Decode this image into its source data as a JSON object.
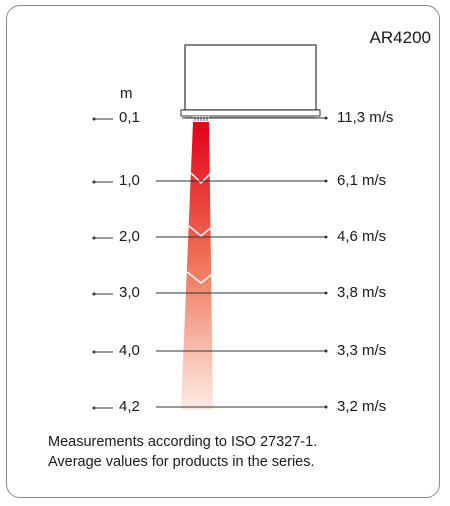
{
  "title": "AR4200",
  "height_unit": "m",
  "measurements": [
    {
      "height": "0,1",
      "velocity": "11,3 m/s"
    },
    {
      "height": "1,0",
      "velocity": "6,1 m/s"
    },
    {
      "height": "2,0",
      "velocity": "4,6 m/s"
    },
    {
      "height": "3,0",
      "velocity": "3,8 m/s"
    },
    {
      "height": "4,0",
      "velocity": "3,3 m/s"
    },
    {
      "height": "4,2",
      "velocity": "3,2 m/s"
    }
  ],
  "caption": {
    "line1": "Measurements according to ISO 27327-1.",
    "line2": "Average values for products in the series."
  },
  "colors": {
    "beam_top": "#e3001b",
    "beam_bottom": "#fde6df",
    "frame": "#8a8a8a",
    "line": "#333333"
  },
  "icons": {
    "unit": "air-curtain-unit-icon",
    "beam": "airflow-beam-icon"
  }
}
